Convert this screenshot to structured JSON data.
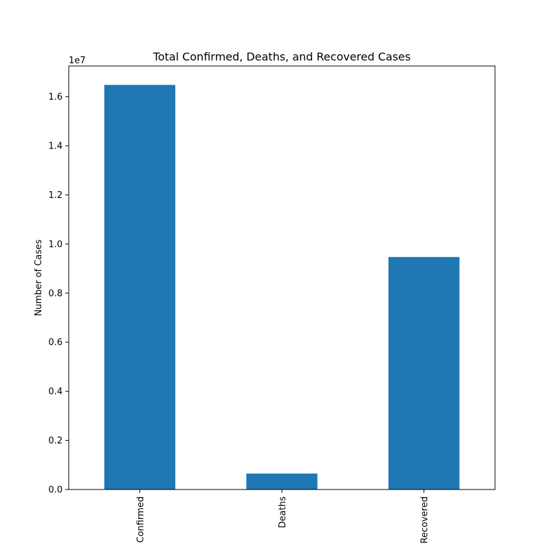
{
  "chart_data": {
    "type": "bar",
    "title": "Total Confirmed, Deaths, and Recovered Cases",
    "xlabel": "",
    "ylabel": "Number of Cases",
    "categories": [
      "Confirmed",
      "Deaths",
      "Recovered"
    ],
    "values": [
      16480000,
      650000,
      9470000
    ],
    "ylim": [
      0,
      17250000
    ],
    "yticks": [
      0,
      2000000,
      4000000,
      6000000,
      8000000,
      10000000,
      12000000,
      14000000,
      16000000
    ],
    "ytick_labels": [
      "0.0",
      "0.2",
      "0.4",
      "0.6",
      "0.8",
      "1.0",
      "1.2",
      "1.4",
      "1.6"
    ],
    "y_offset_label": "1e7",
    "bar_color": "#1f77b4",
    "grid": false,
    "legend": "none"
  }
}
